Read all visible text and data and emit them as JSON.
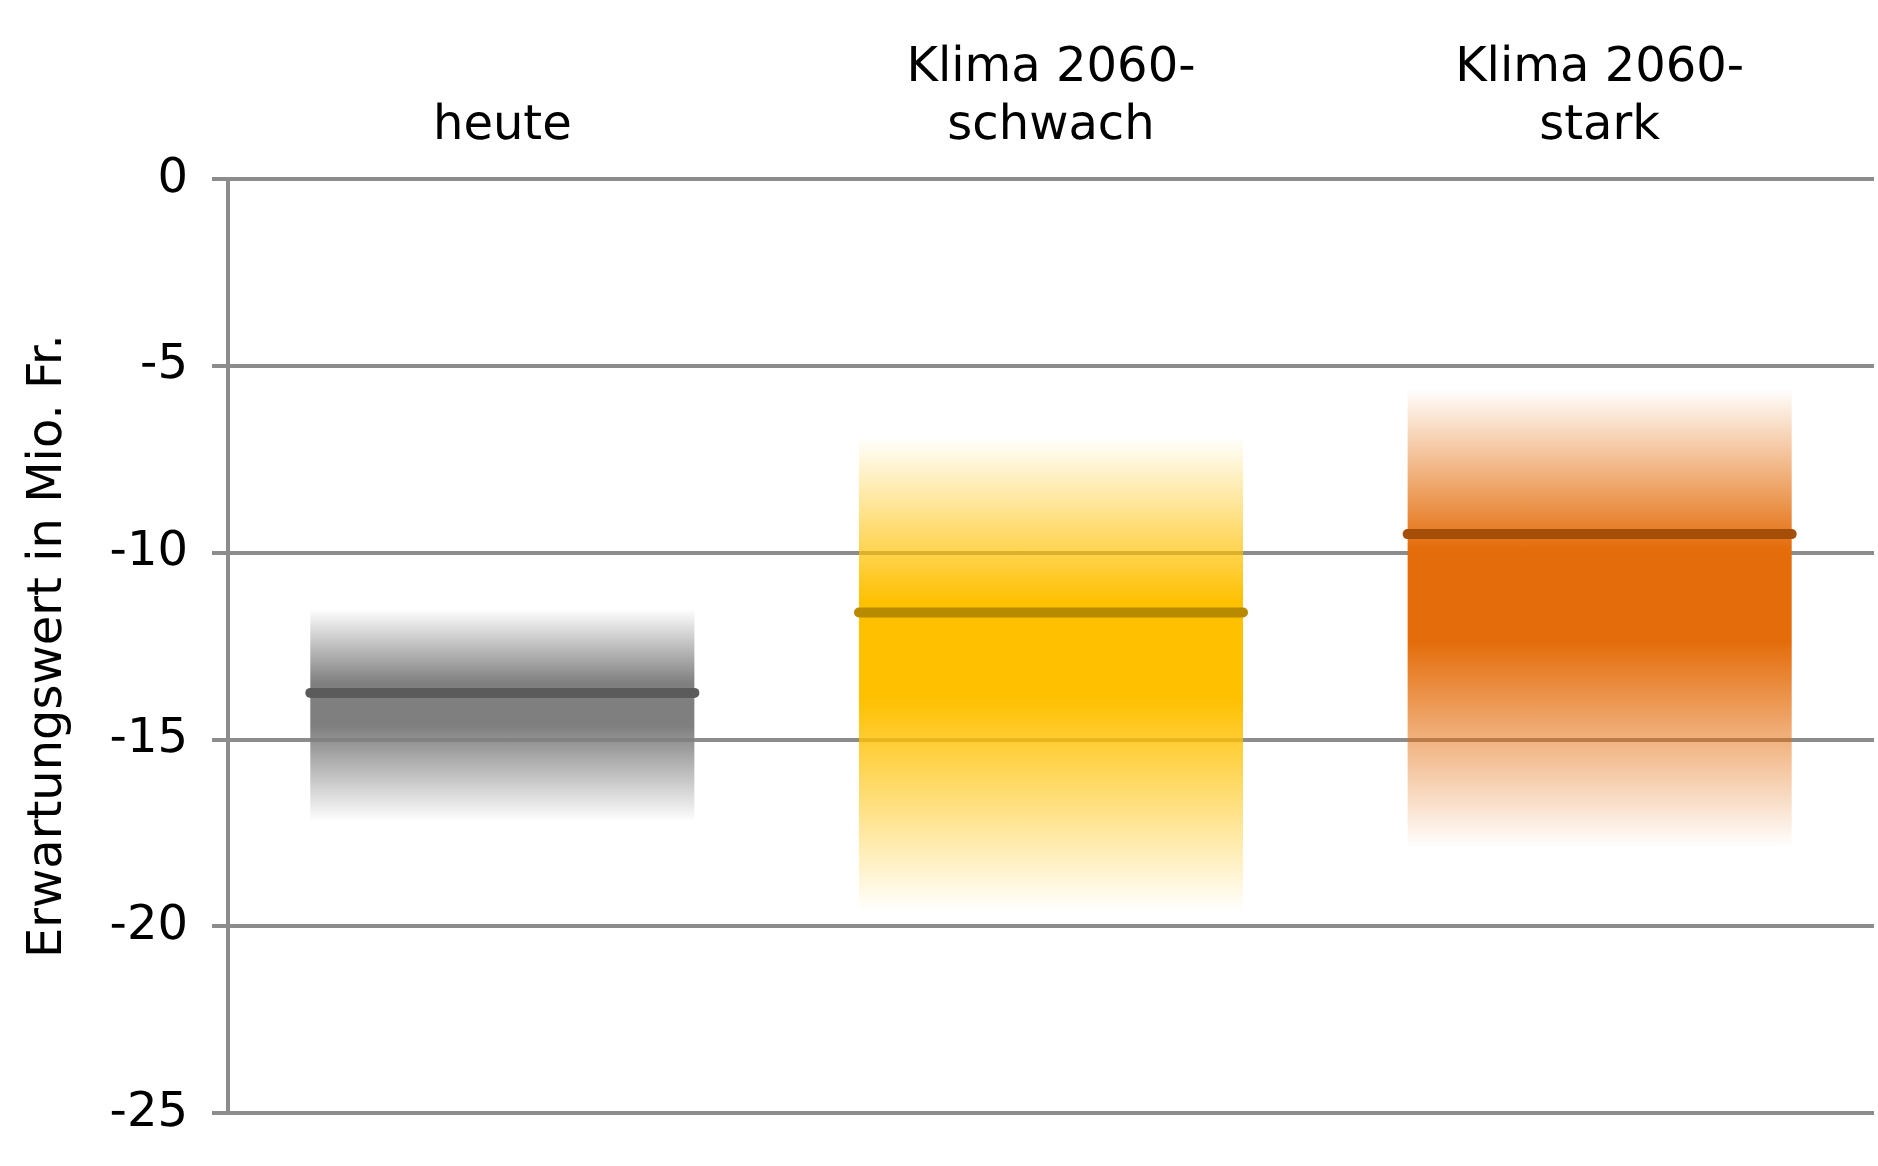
{
  "chart_data": {
    "type": "box",
    "categories": [
      "heute",
      "Klima 2060-schwach",
      "Klima 2060-stark"
    ],
    "ylabel": "Erwartungswert in Mio. Fr.",
    "ylim": [
      -25,
      0
    ],
    "yticks": [
      0,
      -5,
      -10,
      -15,
      -20,
      -25
    ],
    "grid": "y",
    "colors": [
      "#7f7f7f",
      "#ffc000",
      "#e46c0a"
    ],
    "boxes": [
      {
        "low": -17.2,
        "q1": -17.2,
        "median": -13.75,
        "q3": -11.5,
        "high": -11.5
      },
      {
        "low": -19.6,
        "q1": -19.6,
        "median": -11.6,
        "q3": -6.9,
        "high": -6.9
      },
      {
        "low": -17.9,
        "q1": -17.9,
        "median": -9.5,
        "q3": -5.6,
        "high": -5.6
      }
    ]
  }
}
